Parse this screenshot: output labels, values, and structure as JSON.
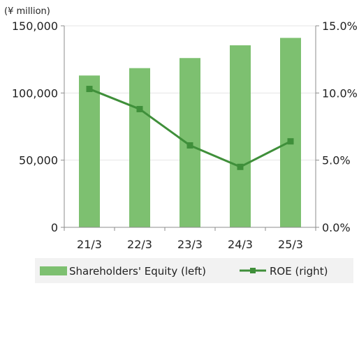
{
  "chart_data": {
    "type": "bar",
    "unit_label": "(¥ million)",
    "categories": [
      "21/3",
      "22/3",
      "23/3",
      "24/3",
      "25/3"
    ],
    "series": [
      {
        "name": "Shareholders' Equity (left)",
        "type": "bar",
        "axis": "left",
        "values": [
          113000,
          118500,
          126000,
          135500,
          141000
        ],
        "color": "#7dc070"
      },
      {
        "name": "ROE (right)",
        "type": "line",
        "axis": "right",
        "values": [
          10.3,
          8.8,
          6.1,
          4.5,
          6.4
        ],
        "color": "#3f8f3a"
      }
    ],
    "y_left": {
      "min": 0,
      "max": 150000,
      "ticks": [
        "0",
        "50,000",
        "100,000",
        "150,000"
      ],
      "tick_values": [
        0,
        50000,
        100000,
        150000
      ]
    },
    "y_right": {
      "min": 0,
      "max": 15,
      "ticks": [
        "0.0%",
        "5.0%",
        "10.0%",
        "15.0%"
      ],
      "tick_values": [
        0,
        5,
        10,
        15
      ]
    },
    "grid": true,
    "legend_position": "bottom"
  }
}
